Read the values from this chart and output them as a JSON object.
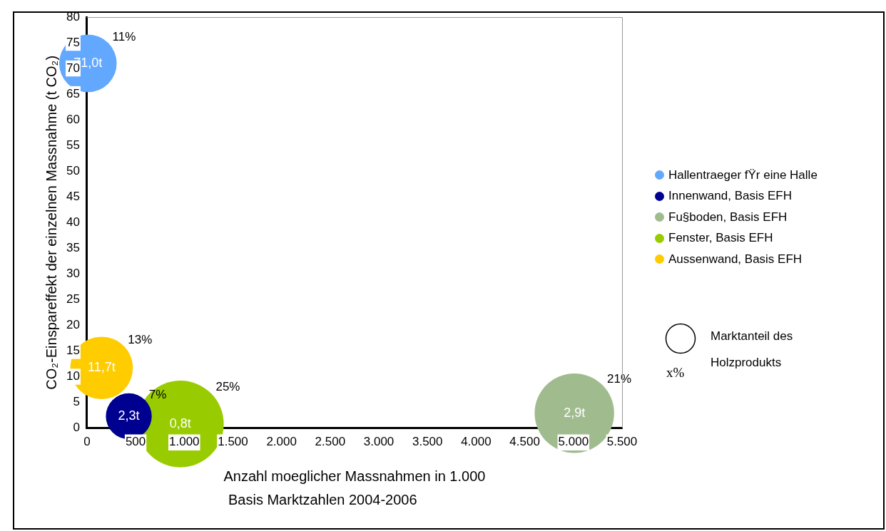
{
  "chart_data": {
    "type": "bubble",
    "xlabel": "Anzahl moeglicher Massnahmen in 1.000",
    "ylabel": "CO₂-Einspareffekt der einzelnen Massnahme (t CO₂)",
    "legend": "right",
    "legend_title": "Marktanteil des Holzprodukts",
    "xlim": [
      0,
      5500
    ],
    "ylim": [
      0,
      80
    ],
    "xticks": [
      0,
      {
        "value": 500,
        "label": "500"
      },
      {
        "value": 1000,
        "label": "1.000"
      },
      {
        "value": 1500,
        "label": "1.500"
      },
      {
        "value": 2000,
        "label": "2.000"
      },
      {
        "value": 2500,
        "label": "2.500"
      },
      {
        "value": 3000,
        "label": "3.000"
      },
      {
        "value": 3500,
        "label": "3.500"
      },
      {
        "value": 4000,
        "label": "4.000"
      },
      {
        "value": 4500,
        "label": "4.500"
      },
      {
        "value": 5000,
        "label": "5.000"
      },
      {
        "value": 5500,
        "label": "5.500"
      }
    ],
    "yticks": [
      0,
      5,
      10,
      15,
      20,
      25,
      30,
      35,
      40,
      45,
      50,
      55,
      60,
      65,
      70,
      75,
      80
    ],
    "series": [
      {
        "name": "Hallentraeger fŸr eine Halle",
        "color": "#63a8ff",
        "x": [
          10
        ],
        "values": [
          71.0
        ],
        "sizes": [
          0.44
        ],
        "value_labels": [
          "71,0t"
        ]
      },
      {
        "name": "Innenwand, Basis EFH",
        "color": "#000090",
        "x": [
          430
        ],
        "values": [
          2.3
        ],
        "sizes": [
          0.28
        ],
        "value_labels": [
          "2,3t"
        ]
      },
      {
        "name": "Fu§boden, Basis EFH",
        "color": "#a0bc8e",
        "x": [
          5010
        ],
        "values": [
          2.9
        ],
        "sizes": [
          0.84
        ],
        "value_labels": [
          "2,9t"
        ]
      },
      {
        "name": "Fenster, Basis EFH",
        "color": "#99cc00",
        "x": [
          960
        ],
        "values": [
          0.8
        ],
        "sizes": [
          1
        ],
        "value_labels": [
          "0,8t"
        ]
      },
      {
        "name": "Aussenwand, Basis EFH",
        "color": "#ffcc00",
        "x": [
          150
        ],
        "values": [
          11.7
        ],
        "sizes": [
          0.52
        ],
        "value_labels": [
          "11,7t"
        ]
      }
    ],
    "annotations": [
      "11%",
      "7%",
      "21%",
      "25%",
      "13%",
      "x%",
      "Basis Marktzahlen 2004-2006"
    ]
  }
}
